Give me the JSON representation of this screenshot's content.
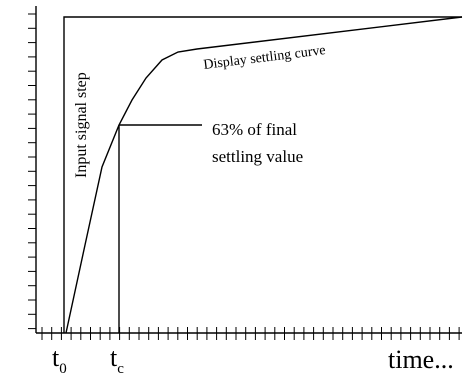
{
  "labels": {
    "input_step": "Input signal step",
    "settling_curve": "Display settling curve",
    "pct_line1": "63% of final",
    "pct_line2": "settling value",
    "t0_main": "t",
    "t0_sub": "0",
    "tc_main": "t",
    "tc_sub": "c",
    "time": "time..."
  }
}
